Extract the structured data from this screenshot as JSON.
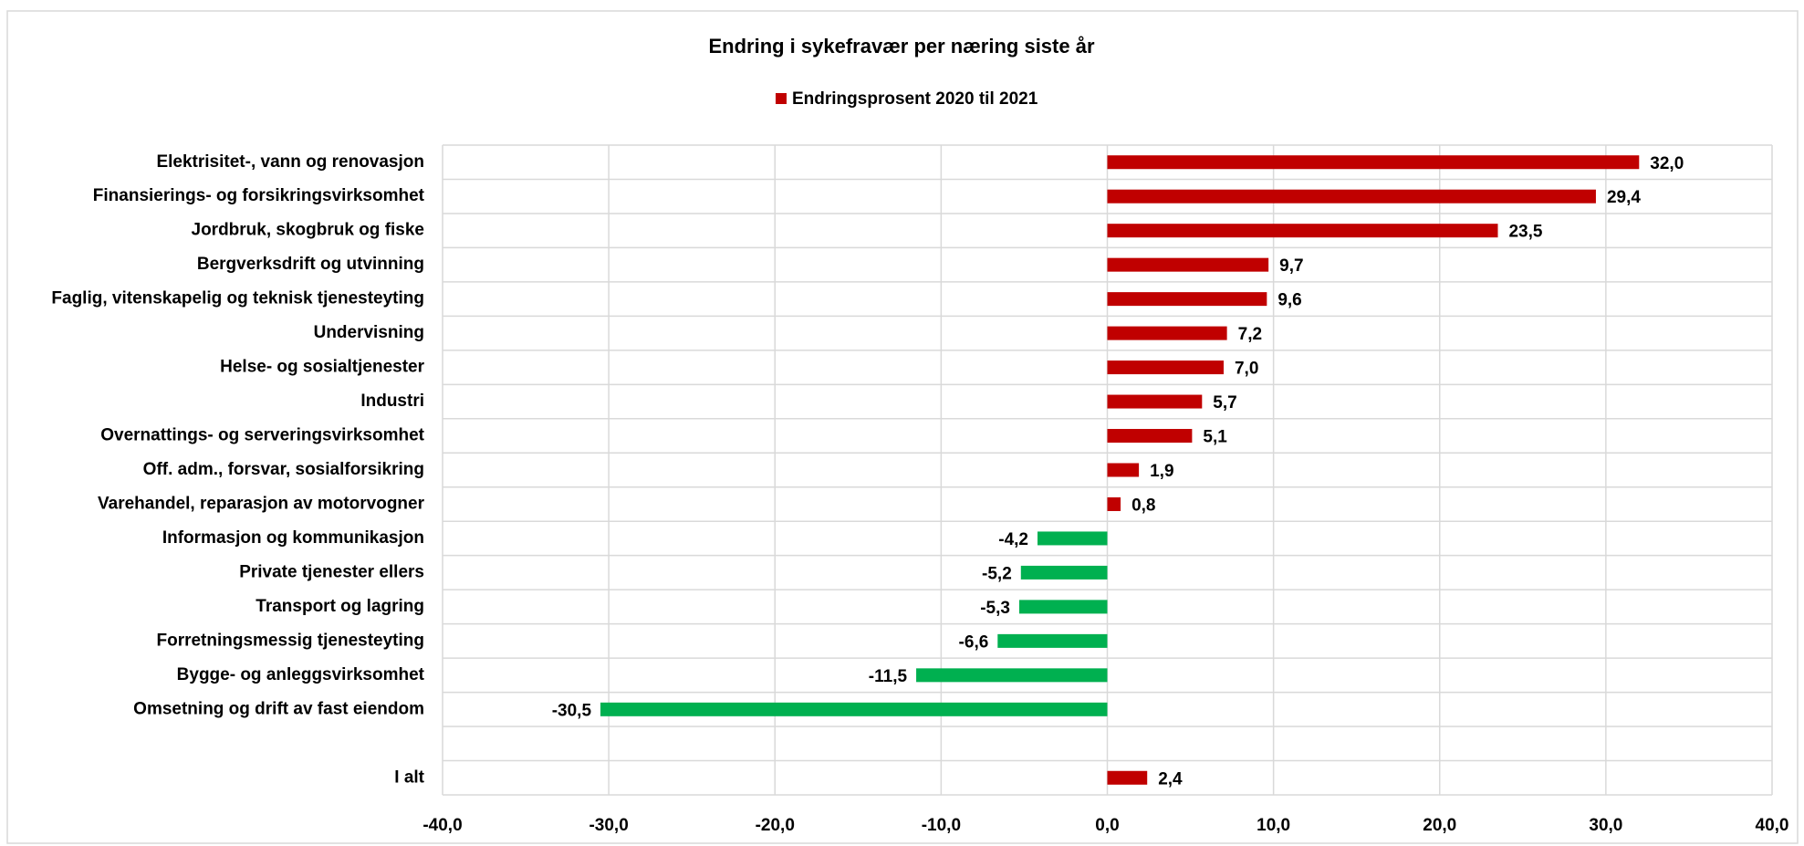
{
  "chart_data": {
    "type": "hbar",
    "title": "Endring i sykefravær per næring siste år",
    "series_name": "Endringsprosent  2020 til 2021",
    "color": "#c00000",
    "negative_color": "#00b050",
    "categories": [
      "Elektrisitet-, vann og renovasjon",
      "Finansierings- og forsikringsvirksomhet",
      "Jordbruk, skogbruk og fiske",
      "Bergverksdrift og utvinning",
      "Faglig, vitenskapelig og teknisk tjenesteyting",
      "Undervisning",
      "Helse- og sosialtjenester",
      "Industri",
      "Overnattings- og serveringsvirksomhet",
      "Off. adm., forsvar, sosialforsikring",
      "Varehandel, reparasjon av motorvogner",
      "Informasjon og kommunikasjon",
      "Private tjenester ellers",
      "Transport og lagring",
      "Forretningsmessig tjenesteyting",
      "Bygge- og anleggsvirksomhet",
      "Omsetning og drift av fast eiendom",
      null,
      "I alt"
    ],
    "values": [
      32.0,
      29.4,
      23.5,
      9.7,
      9.6,
      7.2,
      7.0,
      5.7,
      5.1,
      1.9,
      0.8,
      -4.2,
      -5.2,
      -5.3,
      -6.6,
      -11.5,
      -30.5,
      null,
      2.4
    ],
    "value_labels": [
      "32,0",
      "29,4",
      "23,5",
      "9,7",
      "9,6",
      "7,2",
      "7,0",
      "5,7",
      "5,1",
      "1,9",
      "0,8",
      "-4,2",
      "-5,2",
      "-5,3",
      "-6,6",
      "-11,5",
      "-30,5",
      null,
      "2,4"
    ],
    "xlim": [
      -40,
      40
    ],
    "xticks": [
      {
        "value": -40,
        "label": "-40,0"
      },
      {
        "value": -30,
        "label": "-30,0"
      },
      {
        "value": -20,
        "label": "-20,0"
      },
      {
        "value": -10,
        "label": "-10,0"
      },
      {
        "value": 0,
        "label": "0,0"
      },
      {
        "value": 10,
        "label": "10,0"
      },
      {
        "value": 20,
        "label": "20,0"
      },
      {
        "value": 30,
        "label": "30,0"
      },
      {
        "value": 40,
        "label": "40,0"
      }
    ],
    "grid": true
  }
}
